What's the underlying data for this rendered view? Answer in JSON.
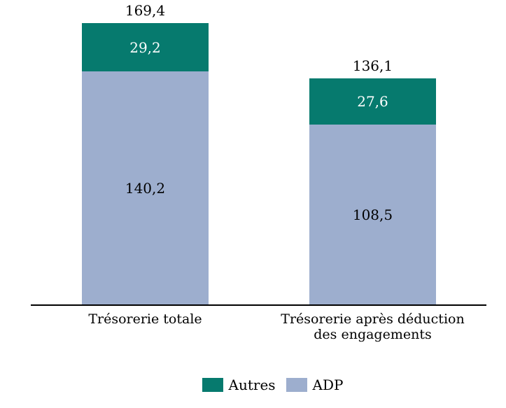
{
  "chart_data": {
    "type": "bar",
    "stacked": true,
    "title": "",
    "xlabel": "",
    "ylabel": "",
    "grid": false,
    "legend_position": "bottom",
    "background": "#ffffff",
    "axis_color": "#000000",
    "categories": [
      "Trésorerie totale",
      "Trésorerie après déduction des engagements"
    ],
    "category_label_lines": [
      [
        "Trésorerie totale"
      ],
      [
        "Trésorerie après déduction",
        "des engagements"
      ]
    ],
    "series": [
      {
        "name": "ADP",
        "color": "#9DAECE",
        "values": [
          140.2,
          108.5
        ],
        "value_labels": [
          "140,2",
          "108,5"
        ],
        "label_color": "#000000"
      },
      {
        "name": "Autres",
        "color": "#067A6E",
        "values": [
          29.2,
          27.6
        ],
        "value_labels": [
          "29,2",
          "27,6"
        ],
        "label_color": "#ffffff"
      }
    ],
    "totals": [
      169.4,
      136.1
    ],
    "total_labels": [
      "169,4",
      "136,1"
    ],
    "legend": [
      {
        "label": "Autres",
        "color": "#067A6E"
      },
      {
        "label": "ADP",
        "color": "#9DAECE"
      }
    ]
  }
}
